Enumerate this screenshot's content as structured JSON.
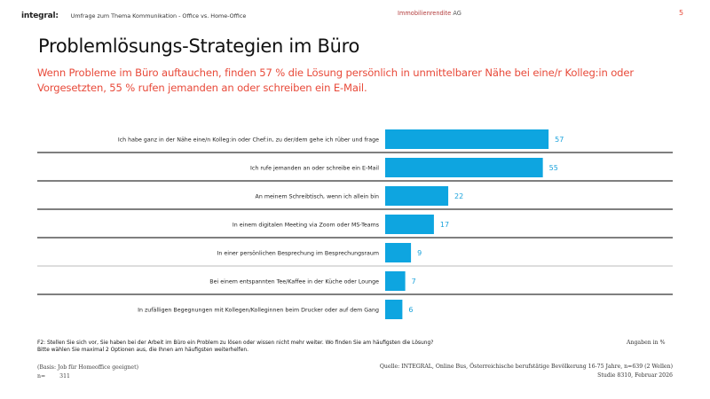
{
  "header": {
    "logo": "integral",
    "logo_suffix": ":",
    "topic": "Umfrage zum Thema Kommunikation - Office vs. Home-Office",
    "client_name": "Immobilienrendite",
    "client_suffix": "AG",
    "page_number": "5"
  },
  "title": "Problemlösungs-Strategien im Büro",
  "subtitle": "Wenn Probleme im Büro auftauchen, finden 57 % die Lösung persönlich in unmittelbarer Nähe bei eine/r Kolleg:in oder Vorgesetzten, 55 % rufen jemanden an oder schreiben ein E-Mail.",
  "colors": {
    "bar": "#0ea5e0",
    "value_label": "#1ba3dc",
    "accent_red": "#e84a3a",
    "divider_dark": "#333333",
    "divider_light": "#bbbbbb"
  },
  "chart_data": {
    "type": "bar",
    "orientation": "horizontal",
    "title": "Problemlösungs-Strategien im Büro",
    "xlabel": "",
    "ylabel": "",
    "unit": "%",
    "xlim": [
      0,
      100
    ],
    "grid": false,
    "legend": "none",
    "categories": [
      "Ich habe ganz in der Nähe eine/n Kolleg:in oder Chef:in, zu der/dem gehe ich rüber und frage",
      "Ich rufe jemanden an oder schreibe ein E-Mail",
      "An meinem Schreibtisch, wenn ich allein bin",
      "In einem digitalen Meeting via Zoom oder MS-Teams",
      "In einer persönlichen Besprechung im Besprechungsraum",
      "Bei einem entspannten Tee/Kaffee in der Küche oder Lounge",
      "In zufälligen Begegnungen mit Kollegen/Kolleginnen beim Drucker oder auf dem Gang"
    ],
    "values": [
      57,
      55,
      22,
      17,
      9,
      7,
      6
    ]
  },
  "footer": {
    "question_line1": "F2: Stellen Sie sich vor, Sie haben bei der Arbeit im Büro ein Problem zu lösen oder wissen nicht mehr weiter. Wo finden Sie am häufigsten die Lösung?",
    "question_line2": "Bitte wählen Sie maximal 2 Optionen aus, die Ihnen am häufigsten weiterhelfen.",
    "unit_note": "Angaben in %",
    "basis": "(Basis: Job für Homeoffice geeignet)",
    "n_label": "n=",
    "n_value": "311",
    "source": "Quelle: INTEGRAL, Online Bus, Österreichische berufstätige Bevölkerung 16-75 Jahre, n=639 (2 Wellen)",
    "study": "Studie 8310, Februar 2026"
  }
}
